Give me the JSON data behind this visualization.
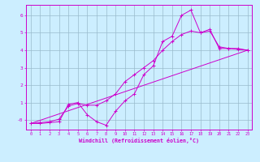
{
  "xlabel": "Windchill (Refroidissement éolien,°C)",
  "bg_color": "#cceeff",
  "line_color": "#cc00cc",
  "grid_color": "#99bbcc",
  "xlim": [
    -0.5,
    23.5
  ],
  "ylim": [
    -0.55,
    6.6
  ],
  "xticks": [
    0,
    1,
    2,
    3,
    4,
    5,
    6,
    7,
    8,
    9,
    10,
    11,
    12,
    13,
    14,
    15,
    16,
    17,
    18,
    19,
    20,
    21,
    22,
    23
  ],
  "yticks": [
    0,
    1,
    2,
    3,
    4,
    5,
    6
  ],
  "ytick_labels": [
    "-0",
    "1",
    "2",
    "3",
    "4",
    "5",
    "6"
  ],
  "line1_x": [
    0,
    1,
    2,
    3,
    4,
    5,
    6,
    7,
    8,
    9,
    10,
    11,
    12,
    13,
    14,
    15,
    16,
    17,
    18,
    19,
    20,
    21,
    22,
    23
  ],
  "line1_y": [
    -0.2,
    -0.2,
    -0.15,
    -0.1,
    0.9,
    1.0,
    0.3,
    -0.1,
    -0.3,
    0.5,
    1.1,
    1.5,
    2.6,
    3.1,
    4.5,
    4.8,
    6.0,
    6.3,
    5.0,
    5.2,
    4.1,
    4.1,
    4.1,
    4.0
  ],
  "line2_x": [
    0,
    1,
    2,
    3,
    4,
    5,
    6,
    7,
    8,
    9,
    10,
    11,
    12,
    13,
    14,
    15,
    16,
    17,
    18,
    19,
    20,
    21,
    22,
    23
  ],
  "line2_y": [
    -0.2,
    -0.15,
    -0.1,
    0.05,
    0.8,
    0.95,
    0.85,
    0.85,
    1.1,
    1.5,
    2.2,
    2.6,
    3.0,
    3.4,
    4.0,
    4.5,
    4.9,
    5.1,
    5.0,
    5.1,
    4.2,
    4.1,
    4.05,
    4.0
  ],
  "line3_x": [
    0,
    23
  ],
  "line3_y": [
    -0.2,
    4.0
  ]
}
